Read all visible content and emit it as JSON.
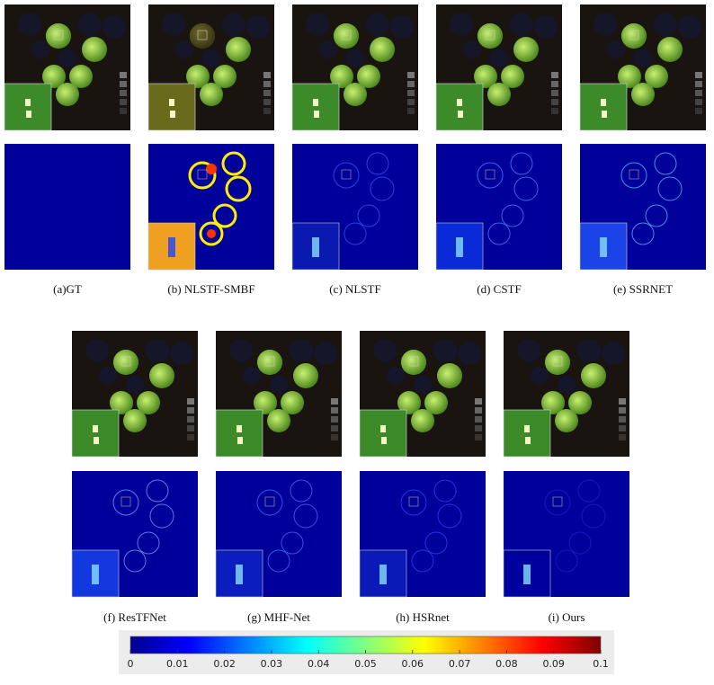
{
  "panels": [
    {
      "caption": "(a)GT"
    },
    {
      "caption": "(b) NLSTF-SMBF"
    },
    {
      "caption": "(c) NLSTF"
    },
    {
      "caption": "(d) CSTF"
    },
    {
      "caption": "(e) SSRNET"
    },
    {
      "caption": "(f) ResTFNet"
    },
    {
      "caption": "(g) MHF-Net"
    },
    {
      "caption": "(h) HSRnet"
    },
    {
      "caption": "(i) Ours"
    }
  ],
  "colorbar": {
    "lim": [
      0,
      0.1
    ],
    "ticks": [
      0,
      0.01,
      0.02,
      0.03,
      0.04,
      0.05,
      0.06,
      0.07,
      0.08,
      0.09,
      0.1
    ]
  }
}
